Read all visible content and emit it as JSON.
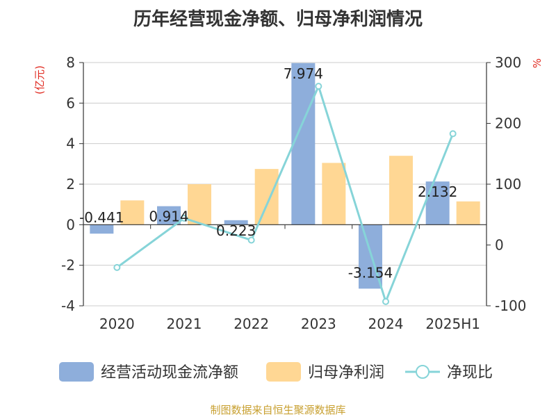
{
  "title": "历年经营现金净额、归母净利润情况",
  "source": "制图数据来自恒生聚源数据库",
  "chart_data": {
    "type": "bar+line",
    "categories": [
      "2020",
      "2021",
      "2022",
      "2023",
      "2024",
      "2025H1"
    ],
    "series": [
      {
        "name": "经营活动现金流净额",
        "kind": "bar",
        "axis": "left",
        "color": "#8eaedb",
        "values": [
          -0.441,
          0.914,
          0.223,
          7.974,
          -3.154,
          2.132
        ],
        "labels": [
          "-0.441",
          "0.914",
          "0.223",
          "7.974",
          "-3.154",
          "2.132"
        ]
      },
      {
        "name": "归母净利润",
        "kind": "bar",
        "axis": "left",
        "color": "#ffd794",
        "values": [
          1.2,
          2.0,
          2.75,
          3.05,
          3.4,
          1.15
        ]
      },
      {
        "name": "净现比",
        "kind": "line",
        "axis": "right",
        "color": "#86d4d8",
        "values": [
          -37,
          44,
          8,
          261,
          -93,
          183
        ]
      }
    ],
    "y_left": {
      "unit": "(亿元)",
      "ylim": [
        -4,
        8
      ],
      "ticks": [
        "8",
        "6",
        "4",
        "2",
        "0",
        "-2",
        "-4"
      ]
    },
    "y_right": {
      "unit": "%",
      "ylim": [
        -100,
        300
      ],
      "ticks": [
        "300",
        "200",
        "100",
        "0",
        "-100"
      ]
    },
    "legend_position": "bottom",
    "grid": true
  }
}
